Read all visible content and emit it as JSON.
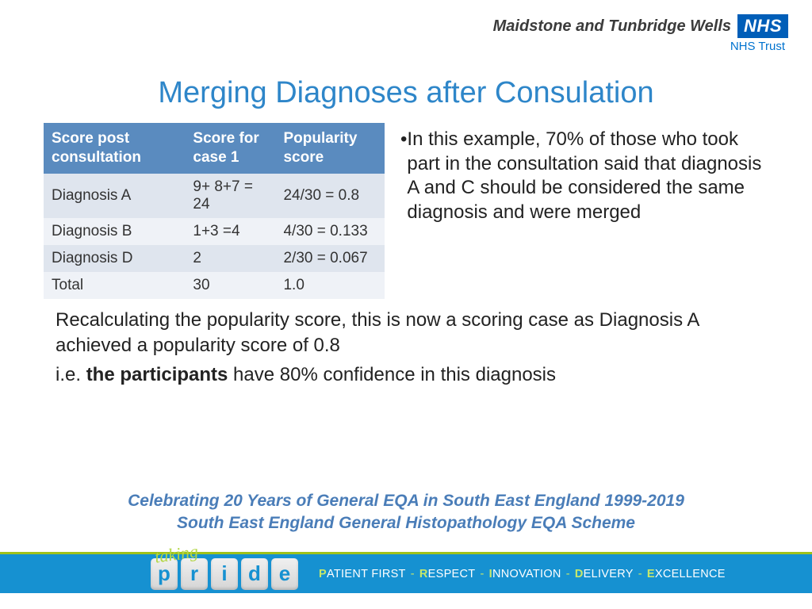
{
  "header": {
    "trust_name": "Maidstone and Tunbridge Wells",
    "nhs": "NHS",
    "nhs_trust": "NHS Trust"
  },
  "title": "Merging Diagnoses after Consulation",
  "table": {
    "headers": [
      "Score post consultation",
      "Score for case 1",
      "Popularity score"
    ],
    "rows": [
      [
        "Diagnosis A",
        "9+ 8+7 = 24",
        "24/30 = 0.8"
      ],
      [
        "Diagnosis B",
        "1+3 =4",
        "4/30 = 0.133"
      ],
      [
        "Diagnosis D",
        "2",
        "2/30 = 0.067"
      ],
      [
        "Total",
        "30",
        "1.0"
      ]
    ],
    "header_bg": "#5a8bbf",
    "header_fg": "#ffffff",
    "row_odd_bg": "#dfe5ee",
    "row_even_bg": "#eff2f7",
    "fontsize": 19
  },
  "bullet_text": "In this example, 70% of those who took part in the consultation said that diagnosis A and C should be considered the same diagnosis and were merged",
  "below": {
    "line1": "Recalculating the popularity score, this is now a scoring case as Diagnosis A achieved a popularity score of 0.8",
    "line2_pre": "i.e. ",
    "line2_bold": "the participants",
    "line2_post": " have  80% confidence in this diagnosis"
  },
  "celebrate": {
    "line1": "Celebrating 20 Years of General EQA in South East England  1999-2019",
    "line2": "South East England General Histopathology EQA Scheme"
  },
  "footer": {
    "taking": "taking",
    "pride_letters": [
      "p",
      "r",
      "i",
      "d",
      "e"
    ],
    "values": [
      {
        "lead": "P",
        "word": "ATIENT FIRST"
      },
      {
        "lead": "R",
        "word": "ESPECT"
      },
      {
        "lead": "I",
        "word": "NNOVATION"
      },
      {
        "lead": "D",
        "word": "ELIVERY"
      },
      {
        "lead": "E",
        "word": "XCELLENCE"
      }
    ],
    "bar_bg": "#1691d1",
    "accent": "#9fc21a"
  }
}
